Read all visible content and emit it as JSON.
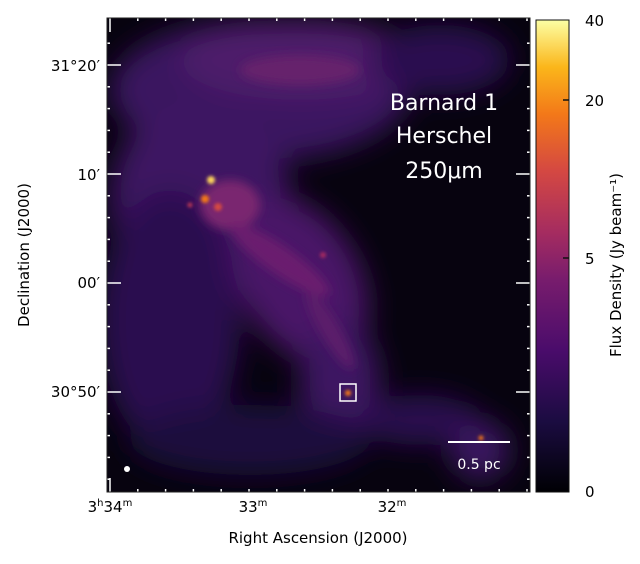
{
  "chart_data": {
    "type": "heatmap",
    "title_lines": [
      "Barnard 1",
      "Herschel",
      "250μm"
    ],
    "xlabel": "Right Ascension (J2000)",
    "ylabel": "Declination (J2000)",
    "x_ticks": [
      {
        "label_main": "3",
        "label_sup1": "h",
        "label_mid": "34",
        "label_sup2": "m"
      },
      {
        "label_main": "33",
        "label_sup2": "m"
      },
      {
        "label_main": "32",
        "label_sup2": "m"
      }
    ],
    "y_ticks": [
      "31°20′",
      "10′",
      "00′",
      "30°50′"
    ],
    "colorbar": {
      "label": "Flux Density (Jy beam⁻¹)",
      "ticks": [
        "40",
        "20",
        "5",
        "0"
      ],
      "tick_values": [
        40,
        20,
        5,
        0
      ],
      "range": [
        0,
        40
      ],
      "colormap": "inferno",
      "colors": [
        "#000004",
        "#320a5e",
        "#781c6d",
        "#bc3754",
        "#ed6925",
        "#fbb61a",
        "#fcffa4"
      ]
    },
    "scale_bar": "0.5 pc",
    "features": {
      "bright_cores": 3,
      "highlighted_box": "bright source near 3h32m20s, 30°50′"
    }
  }
}
